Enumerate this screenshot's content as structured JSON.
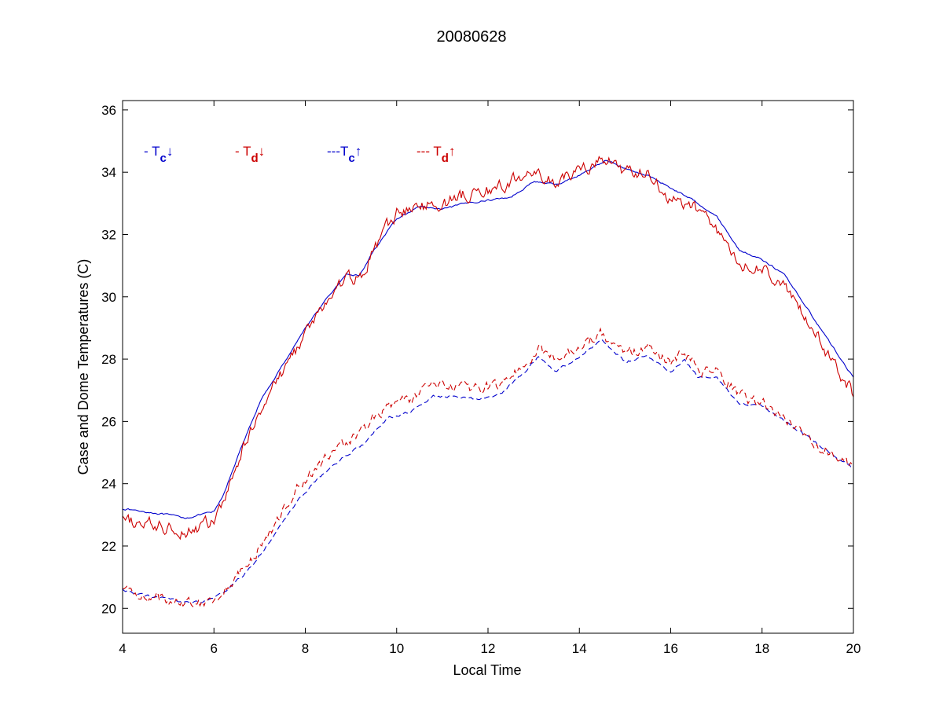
{
  "chart_data": {
    "type": "line",
    "title": "20080628",
    "xlabel": "Local Time",
    "ylabel": "Case and Dome Temperatures (C)",
    "xlim": [
      4,
      20
    ],
    "ylim": [
      19.2,
      36.3
    ],
    "xticks": [
      4,
      6,
      8,
      10,
      12,
      14,
      16,
      18,
      20
    ],
    "yticks": [
      20,
      22,
      24,
      26,
      28,
      30,
      32,
      34,
      36
    ],
    "grid": false,
    "legend_placement": "top-left (inside)",
    "legend": [
      {
        "prefix": "- ",
        "base": "T",
        "sub": "c",
        "arrow": "↓",
        "color": "#0000cc"
      },
      {
        "prefix": "- ",
        "base": "T",
        "sub": "d",
        "arrow": "↓",
        "color": "#cc0000"
      },
      {
        "prefix": "---",
        "base": "T",
        "sub": "c",
        "arrow": "↑",
        "color": "#0000cc"
      },
      {
        "prefix": "--- ",
        "base": "T",
        "sub": "d",
        "arrow": "↑",
        "color": "#cc0000"
      }
    ],
    "series": [
      {
        "legend_index": 0,
        "color": "#0000cc",
        "dash": "solid",
        "noise": 0.02,
        "x": [
          4.0,
          4.5,
          5.0,
          5.4,
          5.7,
          6.0,
          6.2,
          6.5,
          7.0,
          7.5,
          8.0,
          8.5,
          8.9,
          9.2,
          9.5,
          10.0,
          10.5,
          11.0,
          11.5,
          12.0,
          12.5,
          13.0,
          13.5,
          14.0,
          14.6,
          15.0,
          15.5,
          16.0,
          16.5,
          17.0,
          17.5,
          18.0,
          18.5,
          19.0,
          19.5,
          20.0
        ],
        "y": [
          23.2,
          23.1,
          23.0,
          22.9,
          23.0,
          23.1,
          23.6,
          24.8,
          26.6,
          27.8,
          29.0,
          30.0,
          30.7,
          30.7,
          31.5,
          32.5,
          32.9,
          32.8,
          33.0,
          33.1,
          33.2,
          33.7,
          33.6,
          33.9,
          34.4,
          34.1,
          33.9,
          33.5,
          33.1,
          32.6,
          31.5,
          31.2,
          30.7,
          29.6,
          28.5,
          27.4
        ]
      },
      {
        "legend_index": 1,
        "color": "#cc0000",
        "dash": "solid",
        "noise": 0.16,
        "x": [
          4.0,
          4.5,
          5.0,
          5.4,
          5.7,
          6.0,
          6.2,
          6.5,
          7.0,
          7.5,
          8.0,
          8.5,
          8.9,
          9.2,
          9.5,
          10.0,
          10.5,
          11.0,
          11.5,
          12.0,
          12.5,
          13.0,
          13.5,
          14.0,
          14.6,
          15.0,
          15.5,
          16.0,
          16.5,
          17.0,
          17.5,
          18.0,
          18.5,
          19.0,
          19.5,
          20.0
        ],
        "y": [
          22.8,
          22.7,
          22.6,
          22.5,
          22.6,
          22.8,
          23.3,
          24.6,
          26.4,
          27.6,
          28.8,
          29.9,
          30.6,
          30.6,
          31.5,
          32.7,
          32.9,
          33.0,
          33.3,
          33.4,
          33.7,
          34.0,
          33.6,
          34.1,
          34.4,
          34.0,
          33.9,
          33.1,
          32.9,
          32.2,
          31.0,
          30.9,
          30.3,
          29.2,
          28.0,
          26.9
        ]
      },
      {
        "legend_index": 2,
        "color": "#0000cc",
        "dash": "dashed",
        "noise": 0.03,
        "x": [
          4.0,
          4.5,
          5.0,
          5.4,
          5.7,
          6.0,
          6.3,
          6.8,
          7.3,
          7.8,
          8.3,
          8.8,
          9.3,
          9.8,
          10.3,
          10.8,
          11.3,
          11.8,
          12.3,
          12.8,
          13.1,
          13.5,
          14.0,
          14.5,
          15.0,
          15.5,
          16.0,
          16.3,
          16.6,
          17.0,
          17.5,
          18.0,
          18.5,
          19.0,
          19.5,
          20.0
        ],
        "y": [
          20.6,
          20.4,
          20.3,
          20.2,
          20.2,
          20.3,
          20.6,
          21.3,
          22.3,
          23.4,
          24.2,
          24.8,
          25.3,
          26.1,
          26.3,
          26.8,
          26.8,
          26.7,
          26.9,
          27.6,
          28.1,
          27.6,
          28.1,
          28.6,
          27.9,
          28.1,
          27.6,
          28.0,
          27.4,
          27.4,
          26.6,
          26.5,
          26.0,
          25.5,
          25.0,
          24.5
        ]
      },
      {
        "legend_index": 3,
        "color": "#cc0000",
        "dash": "dashed",
        "noise": 0.13,
        "x": [
          4.0,
          4.5,
          5.0,
          5.4,
          5.7,
          6.0,
          6.3,
          6.8,
          7.3,
          7.8,
          8.3,
          8.8,
          9.3,
          9.8,
          10.3,
          10.8,
          11.3,
          11.8,
          12.3,
          12.8,
          13.1,
          13.5,
          14.0,
          14.5,
          15.0,
          15.5,
          16.0,
          16.3,
          16.6,
          17.0,
          17.5,
          18.0,
          18.5,
          19.0,
          19.5,
          20.0
        ],
        "y": [
          20.6,
          20.4,
          20.3,
          20.2,
          20.2,
          20.3,
          20.7,
          21.5,
          22.6,
          23.8,
          24.6,
          25.2,
          25.8,
          26.5,
          26.7,
          27.2,
          27.1,
          27.0,
          27.2,
          27.9,
          28.3,
          27.9,
          28.5,
          28.8,
          28.2,
          28.4,
          27.9,
          28.2,
          27.6,
          27.6,
          26.8,
          26.6,
          26.1,
          25.5,
          25.0,
          24.5
        ]
      }
    ]
  }
}
